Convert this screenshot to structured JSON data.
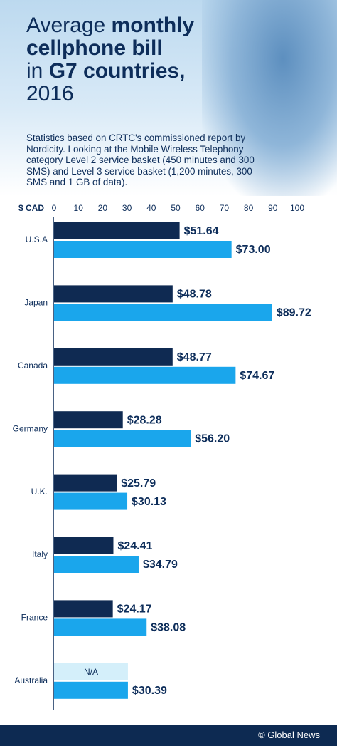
{
  "chart_data": {
    "type": "bar",
    "orientation": "horizontal",
    "title": [
      "Average",
      "monthly",
      "cellphone bill",
      "in",
      "G7 countries,",
      "2016"
    ],
    "subtitle": "Statistics based on CRTC's commissioned report by Nordicity. Looking at the Mobile Wireless Telephony category Level 2 service basket (450 minutes and 300 SMS) and Level 3 service basket (1,200 minutes, 300 SMS and 1 GB of data).",
    "x_label": "$ CAD",
    "categories": [
      "U.S.A",
      "Japan",
      "Canada",
      "Germany",
      "U.K.",
      "Italy",
      "France",
      "Australia"
    ],
    "series": [
      {
        "color": "#0f2a52",
        "values": [
          51.64,
          48.78,
          48.77,
          28.28,
          25.79,
          24.41,
          24.17,
          null
        ],
        "value_labels": [
          "$51.64",
          "$48.78",
          "$48.77",
          "$28.28",
          "$25.79",
          "$24.41",
          "$24.17",
          "N/A"
        ]
      },
      {
        "color": "#1aa6ec",
        "values": [
          73.0,
          89.72,
          74.67,
          56.2,
          30.13,
          34.79,
          38.08,
          30.39
        ],
        "value_labels": [
          "$73.00",
          "$89.72",
          "$74.67",
          "$56.20",
          "$30.13",
          "$34.79",
          "$38.08",
          "$30.39"
        ]
      }
    ],
    "xlim": [
      0,
      100
    ],
    "xticks": [
      0,
      10,
      20,
      30,
      40,
      50,
      60,
      70,
      80,
      90,
      100
    ],
    "source": "© Global News"
  }
}
